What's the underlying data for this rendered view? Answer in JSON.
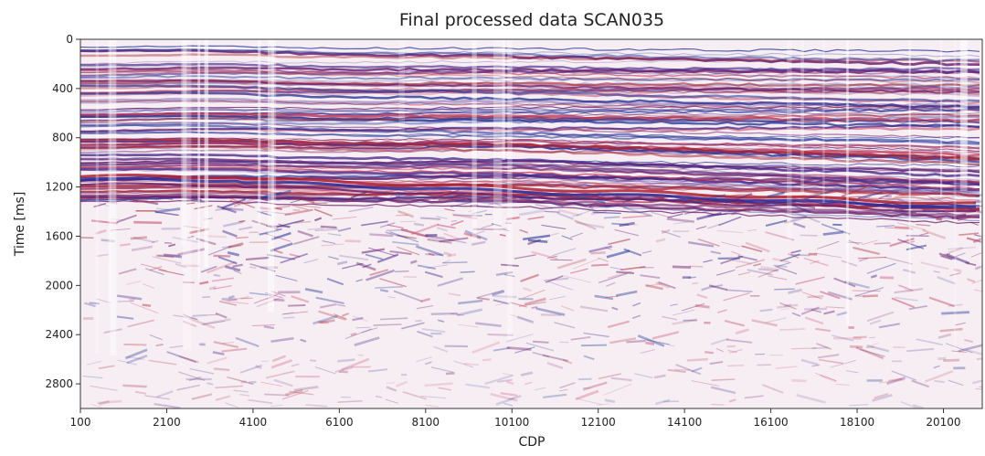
{
  "chart_data": {
    "type": "image",
    "title": "Final processed data SCAN035",
    "x_label": "CDP",
    "y_label": "Time [ms]",
    "xlim": [
      100,
      21000
    ],
    "xticks": [
      100,
      2100,
      4100,
      6100,
      8100,
      10100,
      12100,
      14100,
      16100,
      18100,
      20100
    ],
    "ylim": [
      0,
      3000
    ],
    "yticks": [
      0,
      400,
      800,
      1200,
      1600,
      2000,
      2400,
      2800
    ],
    "y_inverted": true
  }
}
